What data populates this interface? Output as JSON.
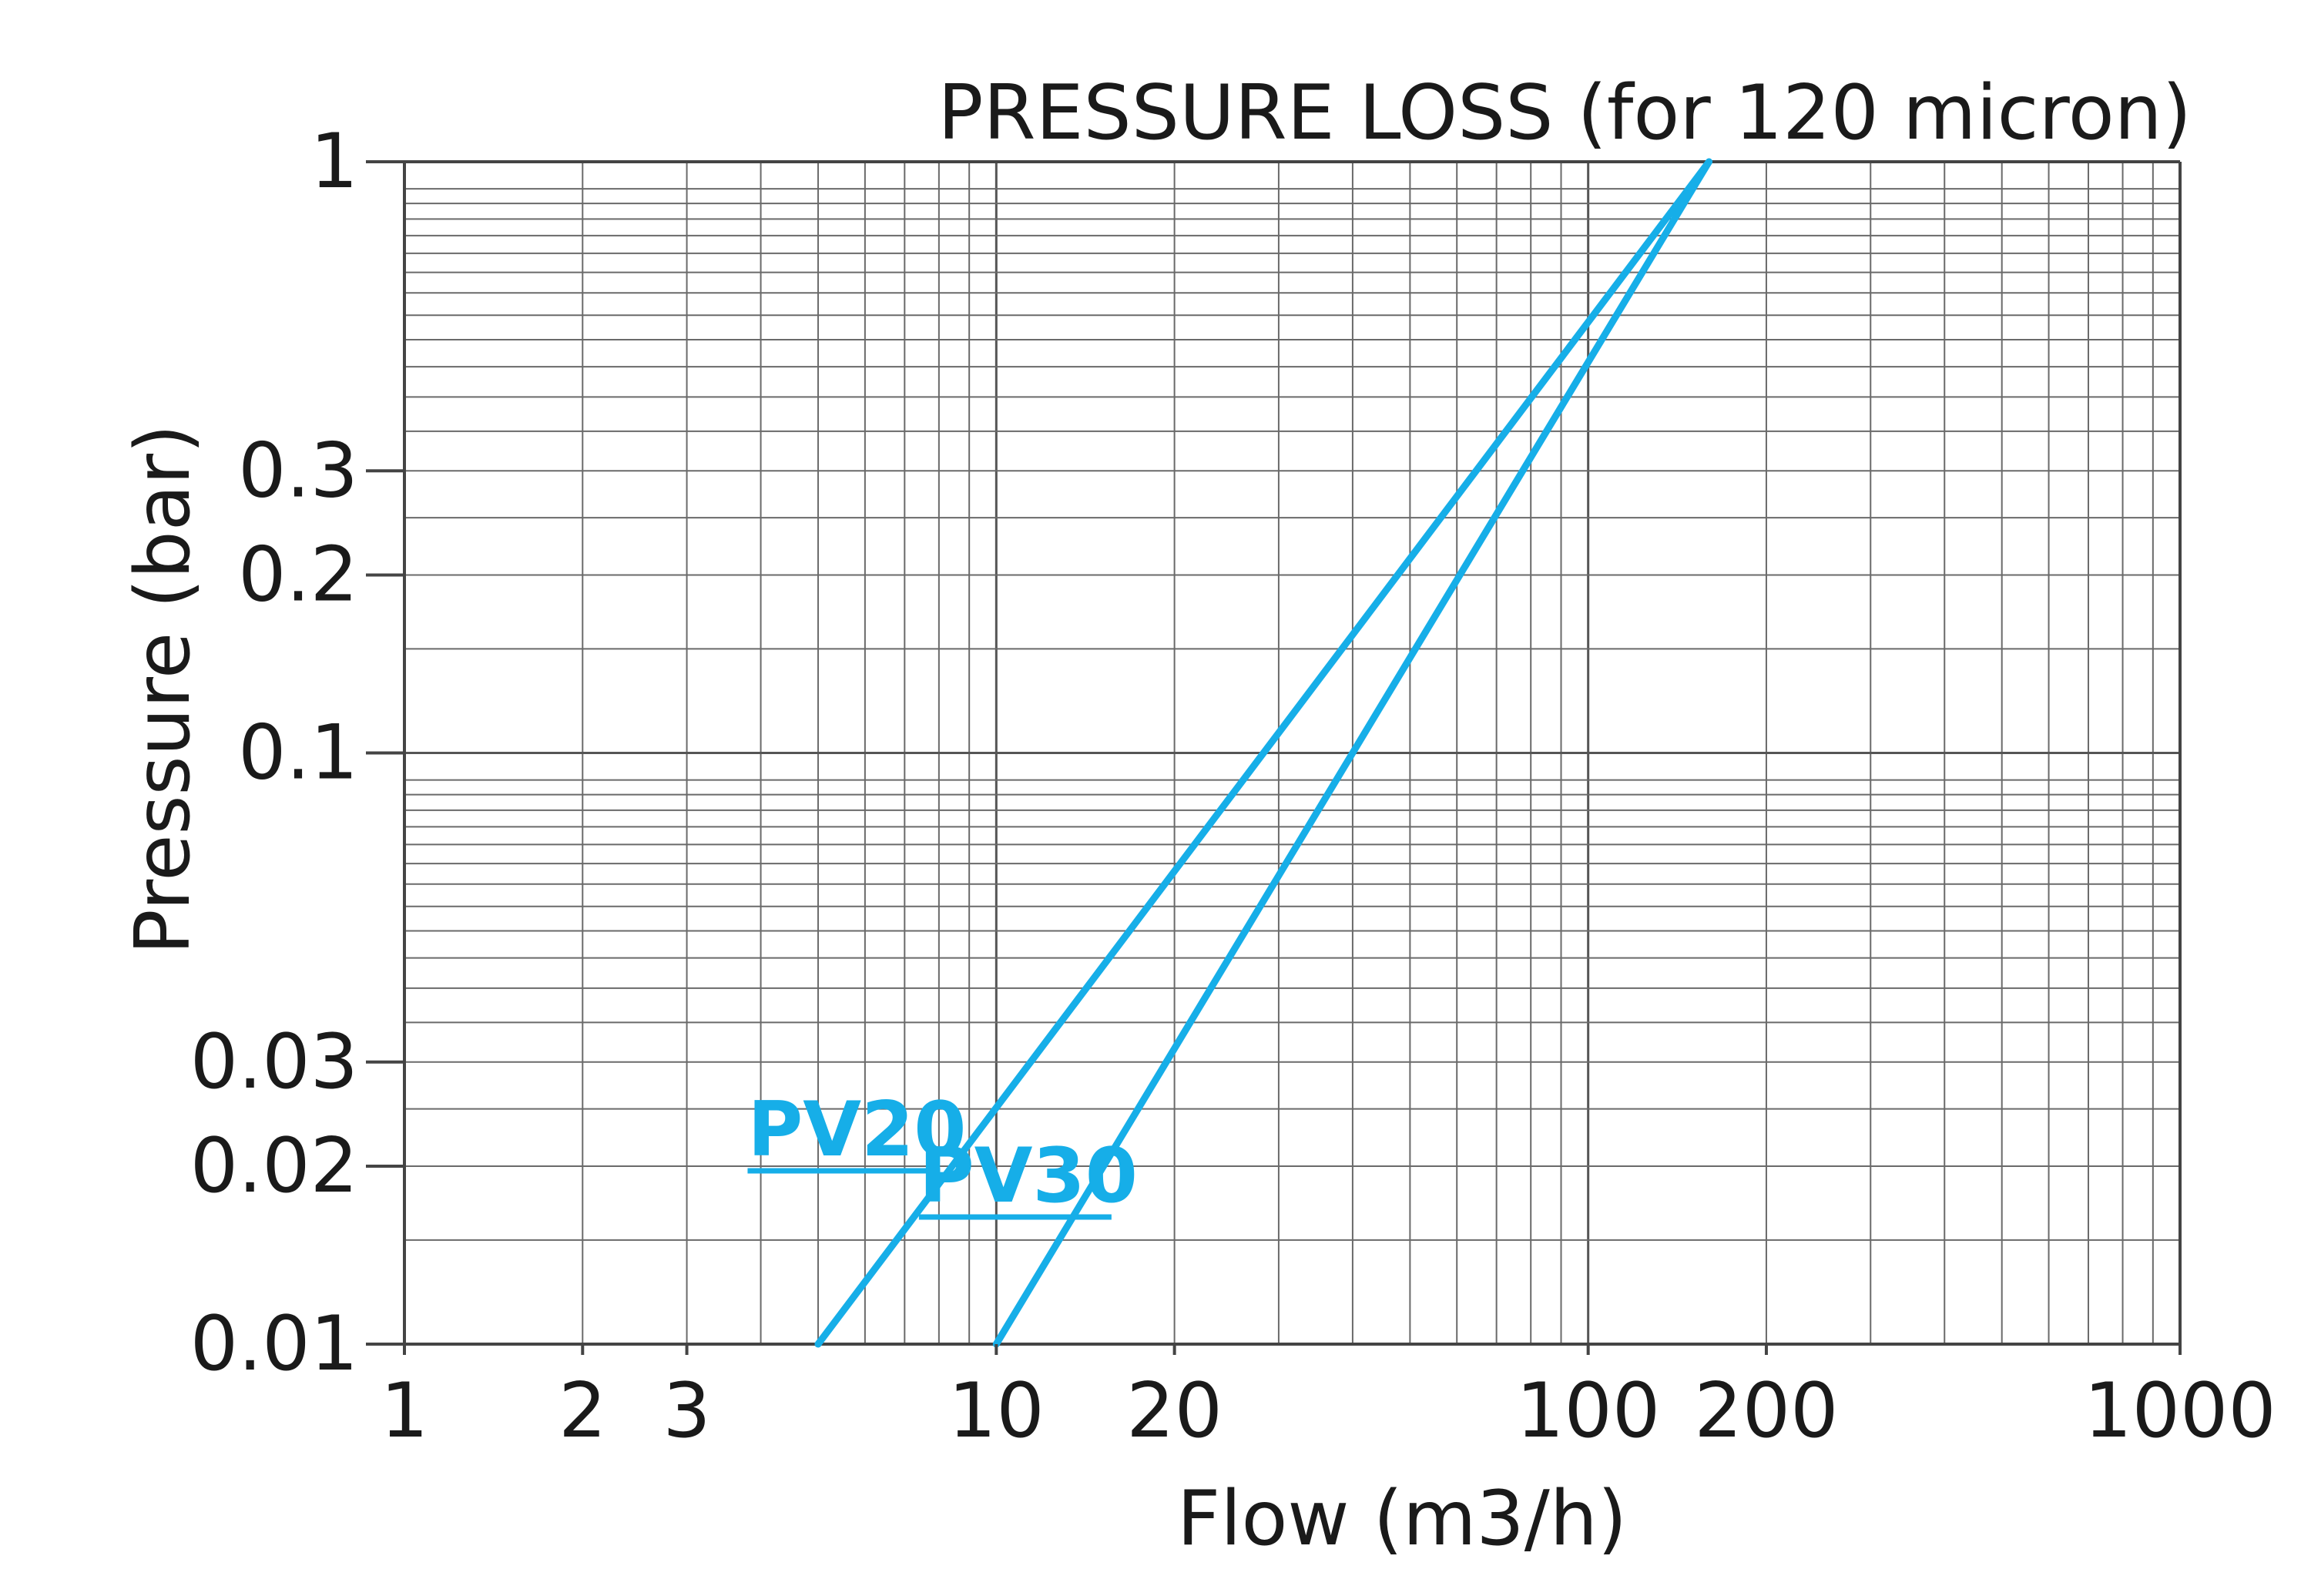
{
  "chart_data": {
    "type": "line",
    "title": "PRESSURE LOSS (for 120 micron)",
    "xlabel": "Flow (m3/h)",
    "ylabel": "Pressure  (bar)",
    "x_scale": "log",
    "y_scale": "log",
    "xlim": [
      1,
      1000
    ],
    "ylim": [
      0.01,
      1
    ],
    "x_tick_labels": [
      "1",
      "2",
      "3",
      "10",
      "20",
      "100",
      "200",
      "1000"
    ],
    "x_tick_values": [
      1,
      2,
      3,
      10,
      20,
      100,
      200,
      1000
    ],
    "y_tick_labels": [
      "1",
      "0.3",
      "0.2",
      "0.1",
      "0.03",
      "0.02",
      "0.01"
    ],
    "y_tick_values": [
      1,
      0.3,
      0.2,
      0.1,
      0.03,
      0.02,
      0.01
    ],
    "grid": true,
    "series": [
      {
        "name": "PV20",
        "color": "#16aee8",
        "points": [
          [
            5,
            0.01
          ],
          [
            160,
            1
          ]
        ]
      },
      {
        "name": "PV30",
        "color": "#16aee8",
        "points": [
          [
            10,
            0.01
          ],
          [
            160,
            1
          ]
        ]
      }
    ]
  }
}
